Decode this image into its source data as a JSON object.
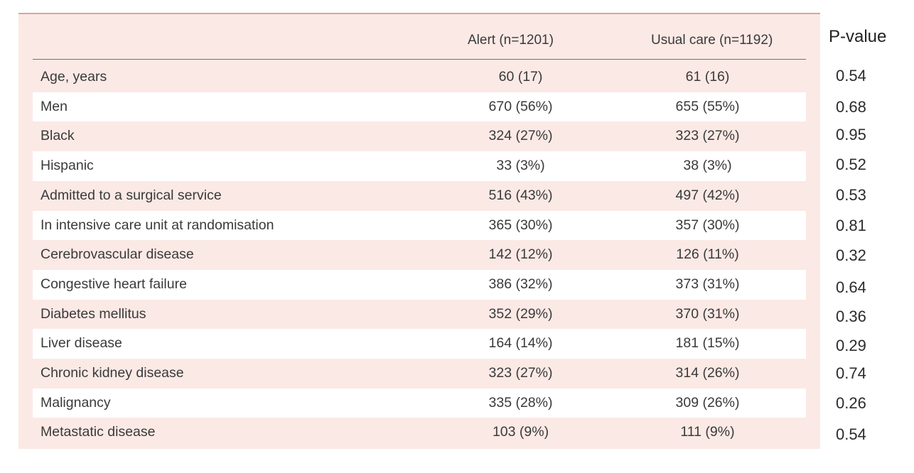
{
  "table": {
    "columns": {
      "label": "",
      "alert": "Alert (n=1201)",
      "usual": "Usual care (n=1192)"
    },
    "rows": [
      {
        "label": "Age, years",
        "alert": "60 (17)",
        "usual": "61 (16)"
      },
      {
        "label": "Men",
        "alert": "670 (56%)",
        "usual": "655 (55%)"
      },
      {
        "label": "Black",
        "alert": "324 (27%)",
        "usual": "323 (27%)"
      },
      {
        "label": "Hispanic",
        "alert": "33 (3%)",
        "usual": "38 (3%)"
      },
      {
        "label": "Admitted to a surgical service",
        "alert": "516 (43%)",
        "usual": "497 (42%)"
      },
      {
        "label": "In intensive care unit at randomisation",
        "alert": "365 (30%)",
        "usual": "357 (30%)"
      },
      {
        "label": "Cerebrovascular disease",
        "alert": "142 (12%)",
        "usual": "126 (11%)"
      },
      {
        "label": "Congestive heart failure",
        "alert": "386 (32%)",
        "usual": "373 (31%)"
      },
      {
        "label": "Diabetes mellitus",
        "alert": "352 (29%)",
        "usual": "370 (31%)"
      },
      {
        "label": "Liver disease",
        "alert": "164 (14%)",
        "usual": "181 (15%)"
      },
      {
        "label": "Chronic kidney disease",
        "alert": "323 (27%)",
        "usual": "314 (26%)"
      },
      {
        "label": "Malignancy",
        "alert": "335 (28%)",
        "usual": "309 (26%)"
      },
      {
        "label": "Metastatic disease",
        "alert": "103 (9%)",
        "usual": "111 (9%)"
      }
    ]
  },
  "pvalues": {
    "header": "P-value",
    "values": [
      "0.54",
      "0.68",
      "0.95",
      "0.52",
      "0.53",
      "0.81",
      "0.32",
      "0.64",
      "0.36",
      "0.29",
      "0.74",
      "0.26",
      "0.54"
    ]
  },
  "colors": {
    "panel_background": "#fbe9e5",
    "stripe_background": "#ffffff",
    "top_border": "#d9a69c",
    "text": "#3a3a3a"
  }
}
